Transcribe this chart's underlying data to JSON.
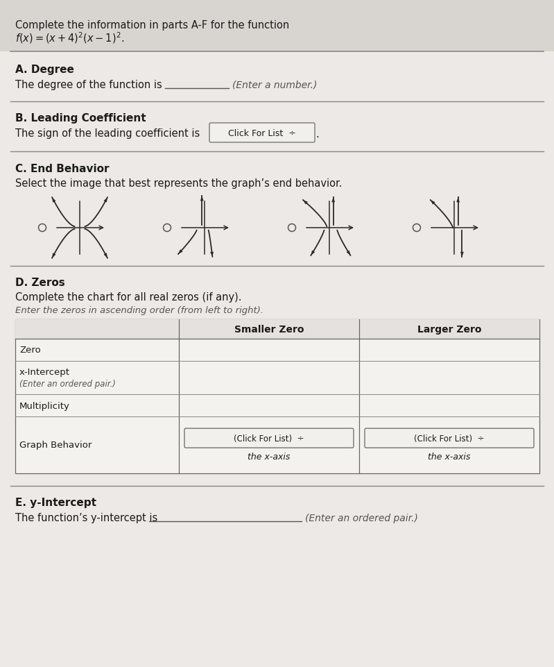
{
  "bg_color": "#eceae7",
  "title_bg": "#d8d5d0",
  "content_bg": "#ece9e6",
  "title_text1": "Complete the information in parts A-F for the function ",
  "title_math": "$f(x) = (x + 4)^2(x - 1)^2$.",
  "sA_title": "A. Degree",
  "sA_text": "The degree of the function is",
  "sA_hint": "(Enter a number.)",
  "sB_title": "B. Leading Coefficient",
  "sB_text": "The sign of the leading coefficient is",
  "sB_button": "Click For List  ÷",
  "sC_title": "C. End Behavior",
  "sC_text": "Select the image that best represents the graph’s end behavior.",
  "sD_title": "D. Zeros",
  "sD_text": "Complete the chart for all real zeros (if any).",
  "sD_subtext": "Enter the zeros in ascending order (from left to right).",
  "th_smaller": "Smaller Zero",
  "th_larger": "Larger Zero",
  "row0": "Zero",
  "row1a": "x-Intercept",
  "row1b": "(Enter an ordered pair.)",
  "row2": "Multiplicity",
  "row3": "Graph Behavior",
  "btn_text": "(Click For List)  ÷",
  "btn_sub": "the x-axis",
  "sE_title": "E. y-Intercept",
  "sE_text": "The function’s y-intercept is",
  "sE_hint": "(Enter an ordered pair.)",
  "line_color": "#999999",
  "text_color": "#1a1a1a",
  "dim_color": "#555555"
}
